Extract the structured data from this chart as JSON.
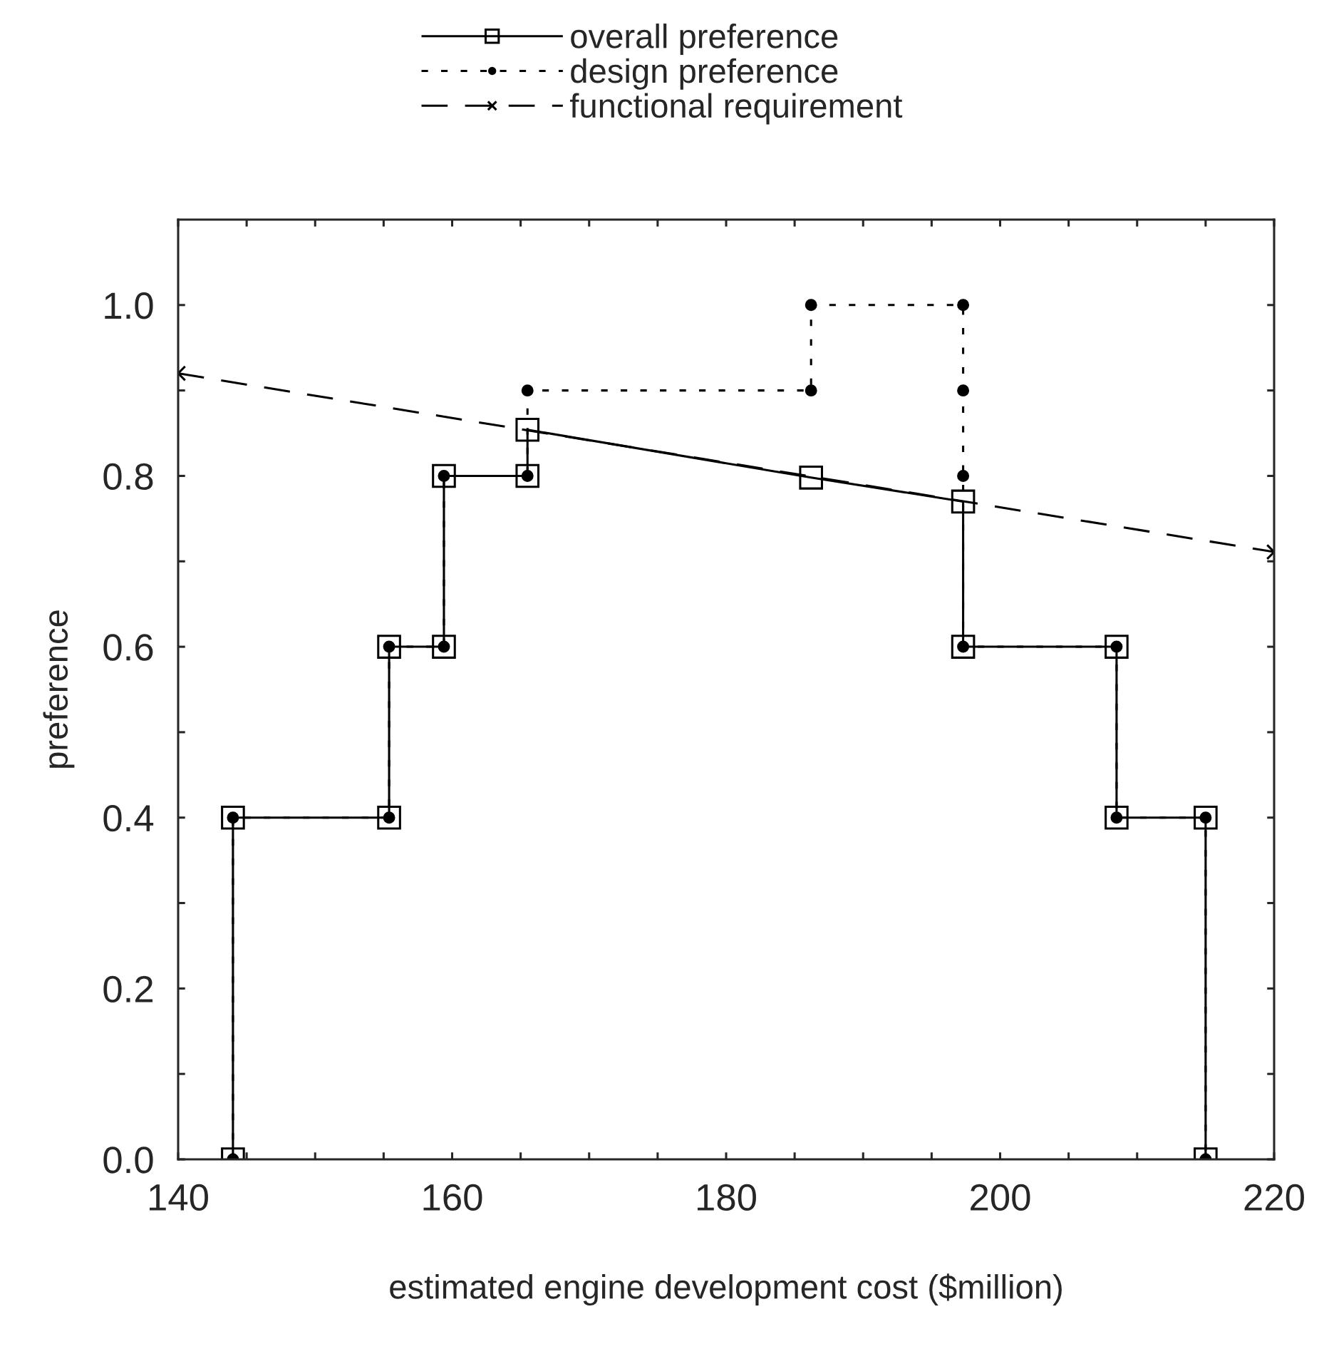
{
  "chart_data": {
    "type": "line",
    "xlabel": "estimated engine development cost ($million)",
    "ylabel": "preference",
    "series": [
      {
        "name": "overall preference",
        "color": "#000000",
        "marker": "square",
        "line_style": "solid",
        "x": [
          144,
          144,
          155.4,
          155.4,
          159.4,
          159.4,
          165.5,
          165.5,
          186.2,
          197.3,
          197.3,
          208.5,
          208.5,
          215,
          215
        ],
        "values": [
          0,
          0.4,
          0.4,
          0.6,
          0.6,
          0.8,
          0.8,
          0.854,
          0.798,
          0.77,
          0.6,
          0.6,
          0.4,
          0.4,
          0
        ]
      },
      {
        "name": "design preference",
        "color": "#000000",
        "marker": "circle",
        "line_style": "dotted",
        "x": [
          144,
          144,
          155.4,
          155.4,
          159.4,
          159.4,
          165.5,
          165.5,
          186.2,
          186.2,
          197.3,
          197.3,
          197.3,
          197.3,
          208.5,
          208.5,
          215,
          215
        ],
        "values": [
          0,
          0.4,
          0.4,
          0.6,
          0.6,
          0.8,
          0.8,
          0.9,
          0.9,
          1.0,
          1.0,
          0.9,
          0.8,
          0.6,
          0.6,
          0.4,
          0.4,
          0
        ]
      },
      {
        "name": "functional requirement",
        "color": "#000000",
        "marker": "cross",
        "line_style": "dashed",
        "x": [
          140,
          220
        ],
        "values": [
          0.92,
          0.711
        ]
      }
    ],
    "xlim": [
      140,
      220
    ],
    "ylim": [
      0,
      1.1
    ],
    "xticks": [
      140,
      {
        "value": 145,
        "label": null
      },
      {
        "value": 150,
        "label": null
      },
      {
        "value": 155,
        "label": null
      },
      160,
      {
        "value": 165,
        "label": null
      },
      {
        "value": 170,
        "label": null
      },
      {
        "value": 175,
        "label": null
      },
      180,
      {
        "value": 185,
        "label": null
      },
      {
        "value": 190,
        "label": null
      },
      {
        "value": 195,
        "label": null
      },
      200,
      {
        "value": 205,
        "label": null
      },
      {
        "value": 210,
        "label": null
      },
      {
        "value": 215,
        "label": null
      },
      220
    ],
    "yticks": [
      {
        "value": 0,
        "label": "0.0"
      },
      {
        "value": 0.1,
        "label": null
      },
      {
        "value": 0.2,
        "label": "0.2"
      },
      {
        "value": 0.3,
        "label": null
      },
      {
        "value": 0.4,
        "label": "0.4"
      },
      {
        "value": 0.5,
        "label": null
      },
      {
        "value": 0.6,
        "label": "0.6"
      },
      {
        "value": 0.7,
        "label": null
      },
      {
        "value": 0.8,
        "label": "0.8"
      },
      {
        "value": 0.9,
        "label": null
      },
      {
        "value": 1.0,
        "label": "1.0"
      }
    ],
    "grid": false,
    "legend": "top"
  }
}
